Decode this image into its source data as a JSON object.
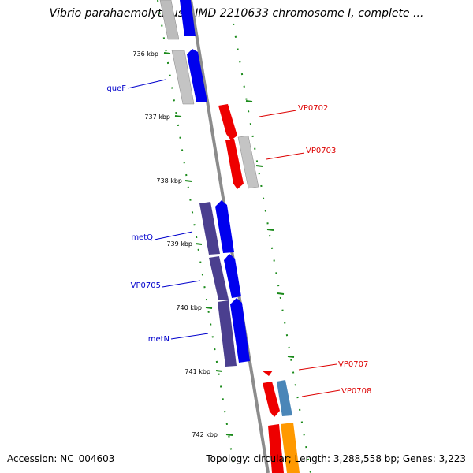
{
  "title": "Vibrio parahaemolyticus RIMD 2210633 chromosome I, complete ...",
  "footer": {
    "accession": "Accession: NC_004603",
    "topology": "Topology: circular; Length: 3,288,558 bp; Genes: 3,223"
  },
  "scale": {
    "ticks": [
      "736 kbp",
      "737 kbp",
      "738 kbp",
      "739 kbp",
      "740 kbp",
      "741 kbp",
      "742 kbp"
    ]
  },
  "genes": [
    {
      "name": "queF",
      "color": "#0000cc"
    },
    {
      "name": "VP0702",
      "color": "#dd0000"
    },
    {
      "name": "VP0703",
      "color": "#dd0000"
    },
    {
      "name": "metQ",
      "color": "#0000cc"
    },
    {
      "name": "VP0705",
      "color": "#0000cc"
    },
    {
      "name": "metN",
      "color": "#0000cc"
    },
    {
      "name": "VP0707",
      "color": "#dd0000"
    },
    {
      "name": "VP0708",
      "color": "#dd0000"
    }
  ],
  "colors": {
    "backbone": "#8c8c8c",
    "dots": "#1a7a1a",
    "forward_cds": "#0000ee",
    "reverse_cds": "#ee0000",
    "gene_track": "#bcbcbc",
    "operon": "#4b3f8f",
    "light_blue": "#4a86b8",
    "orange": "#ff9900"
  }
}
